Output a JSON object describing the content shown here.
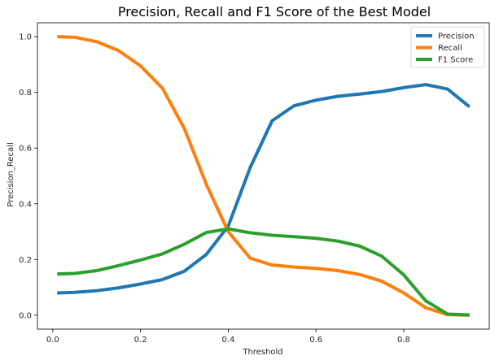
{
  "chart_data": {
    "type": "line",
    "title": "Precision, Recall and F1 Score of the Best Model",
    "xlabel": "Threshold",
    "ylabel": "Precision_Recall",
    "xlim": [
      -0.035,
      0.995
    ],
    "ylim": [
      -0.05,
      1.05
    ],
    "xticks": [
      0.0,
      0.2,
      0.4,
      0.6,
      0.8
    ],
    "xtick_labels": [
      "0.0",
      "0.2",
      "0.4",
      "0.6",
      "0.8"
    ],
    "yticks": [
      0.0,
      0.2,
      0.4,
      0.6,
      0.8,
      1.0
    ],
    "ytick_labels": [
      "0.0",
      "0.2",
      "0.4",
      "0.6",
      "0.8",
      "1.0"
    ],
    "grid": false,
    "legend_position": "top-right",
    "x": [
      0.01,
      0.05,
      0.1,
      0.15,
      0.2,
      0.25,
      0.3,
      0.35,
      0.4,
      0.45,
      0.5,
      0.55,
      0.6,
      0.65,
      0.7,
      0.75,
      0.8,
      0.85,
      0.9,
      0.95
    ],
    "series": [
      {
        "name": "Precision",
        "color": "#1f77b4",
        "values": [
          0.08,
          0.082,
          0.088,
          0.098,
          0.112,
          0.128,
          0.158,
          0.218,
          0.32,
          0.53,
          0.698,
          0.752,
          0.772,
          0.786,
          0.794,
          0.803,
          0.817,
          0.828,
          0.812,
          0.748
        ]
      },
      {
        "name": "Recall",
        "color": "#ff7f0e",
        "values": [
          1.0,
          0.998,
          0.982,
          0.95,
          0.895,
          0.815,
          0.67,
          0.47,
          0.3,
          0.205,
          0.18,
          0.173,
          0.168,
          0.16,
          0.146,
          0.122,
          0.08,
          0.027,
          0.002,
          0.0
        ]
      },
      {
        "name": "F1 Score",
        "color": "#2ca02c",
        "values": [
          0.148,
          0.15,
          0.16,
          0.178,
          0.198,
          0.22,
          0.255,
          0.297,
          0.31,
          0.296,
          0.287,
          0.282,
          0.276,
          0.266,
          0.248,
          0.212,
          0.145,
          0.052,
          0.004,
          0.001
        ]
      }
    ]
  }
}
